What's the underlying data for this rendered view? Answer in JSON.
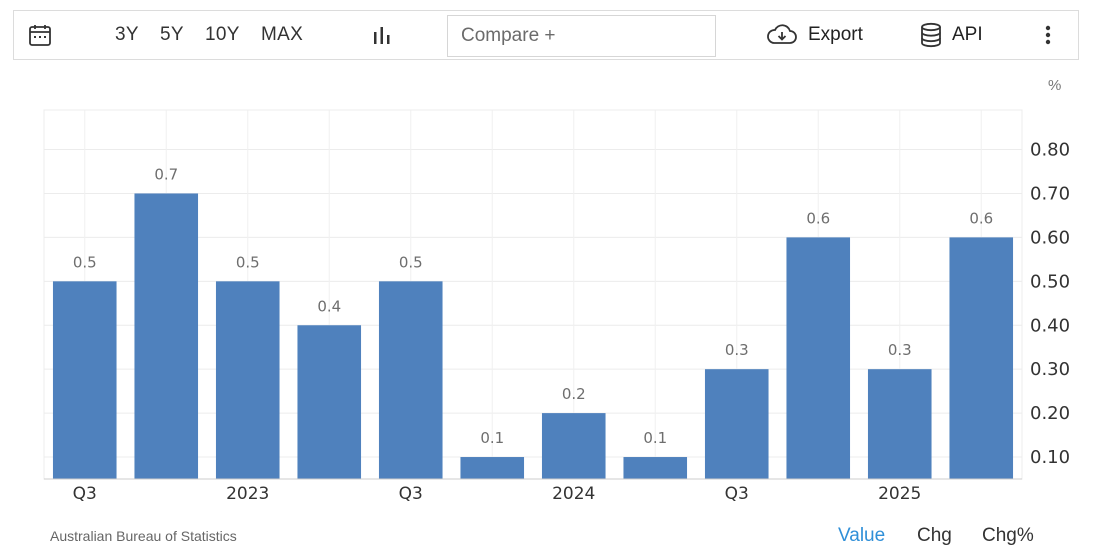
{
  "toolbar": {
    "calendar_icon": "calendar-icon",
    "ranges": [
      "3Y",
      "5Y",
      "10Y",
      "MAX"
    ],
    "chart_type_icon": "bar-chart-icon",
    "compare_placeholder": "Compare +",
    "export_label": "Export",
    "api_label": "API",
    "menu_icon": "vertical-dots-icon"
  },
  "footer": {
    "source": "Australian Bureau of Statistics",
    "views": [
      "Value",
      "Chg",
      "Chg%"
    ],
    "active_view": "Value",
    "active_color": "#2f8fd8"
  },
  "chart_data": {
    "type": "bar",
    "unit": "%",
    "bar_color": "#4f81bd",
    "categories": [
      "2022 Q3",
      "2022 Q4",
      "2023 Q1",
      "2023 Q2",
      "2023 Q3",
      "2023 Q4",
      "2024 Q1",
      "2024 Q2",
      "2024 Q3",
      "2024 Q4",
      "2025 Q1",
      "2025 Q2"
    ],
    "values": [
      0.5,
      0.7,
      0.5,
      0.4,
      0.5,
      0.1,
      0.2,
      0.1,
      0.3,
      0.6,
      0.3,
      0.6
    ],
    "data_labels": [
      "0.5",
      "0.7",
      "0.5",
      "0.4",
      "0.5",
      "0.1",
      "0.2",
      "0.1",
      "0.3",
      "0.6",
      "0.3",
      "0.6"
    ],
    "x_tick_labels": [
      "Q3",
      "2023",
      "Q3",
      "2024",
      "Q3",
      "2025"
    ],
    "y_ticks": [
      "0.10",
      "0.20",
      "0.30",
      "0.40",
      "0.50",
      "0.60",
      "0.70",
      "0.80"
    ],
    "ylim": [
      0.05,
      0.89
    ],
    "y_axis_position": "right",
    "grid": true,
    "legend": "none"
  }
}
